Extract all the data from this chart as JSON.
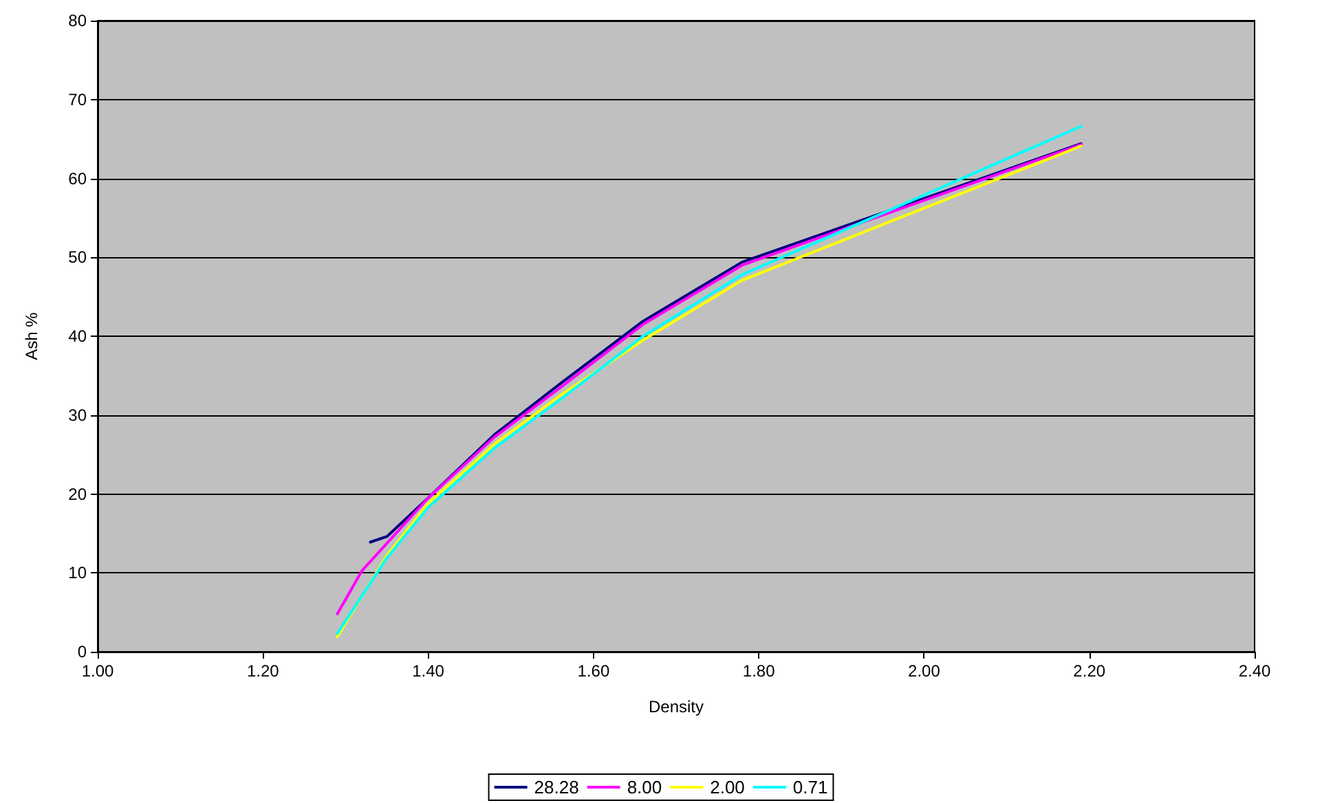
{
  "chart_data": {
    "type": "line",
    "xlabel": "Density",
    "ylabel": "Ash %",
    "xlim": [
      1.0,
      2.4
    ],
    "xticks": [
      {
        "value": 1.0,
        "label": "1.00"
      },
      {
        "value": 1.2,
        "label": "1.20"
      },
      {
        "value": 1.4,
        "label": "1.40"
      },
      {
        "value": 1.6,
        "label": "1.60"
      },
      {
        "value": 1.8,
        "label": "1.80"
      },
      {
        "value": 2.0,
        "label": "2.00"
      },
      {
        "value": 2.2,
        "label": "2.20"
      },
      {
        "value": 2.4,
        "label": "2.40"
      }
    ],
    "ylim": [
      0,
      80
    ],
    "yticks": [
      0,
      10,
      20,
      30,
      40,
      50,
      60,
      70,
      80
    ],
    "grid": "y",
    "legend": "bottom",
    "marker": "none",
    "line_style": "solid",
    "series": [
      {
        "name": "28.28",
        "color": "#000080",
        "x": [
          1.33,
          1.35,
          1.4,
          1.48,
          1.56,
          1.66,
          1.78,
          2.19
        ],
        "values": [
          13.9,
          14.6,
          19.5,
          27.5,
          34,
          41.9,
          49.4,
          64.4
        ]
      },
      {
        "name": "8.00",
        "color": "#ff00ff",
        "x": [
          1.29,
          1.32,
          1.4,
          1.48,
          1.56,
          1.66,
          1.78,
          2.19
        ],
        "values": [
          4.8,
          10.3,
          19.5,
          27.2,
          33.5,
          41.5,
          49,
          64.3
        ]
      },
      {
        "name": "2.00",
        "color": "#ffff00",
        "x": [
          1.29,
          1.35,
          1.4,
          1.48,
          1.56,
          1.66,
          1.78,
          2.19
        ],
        "values": [
          1.9,
          12.2,
          18.8,
          26.3,
          32.5,
          39.5,
          47.1,
          64.1
        ]
      },
      {
        "name": "0.71",
        "color": "#00ffff",
        "x": [
          1.29,
          1.35,
          1.4,
          1.48,
          1.56,
          1.66,
          1.78,
          2.19
        ],
        "values": [
          2.3,
          11.9,
          18.3,
          25.8,
          32,
          40,
          47.8,
          66.6
        ]
      }
    ]
  }
}
